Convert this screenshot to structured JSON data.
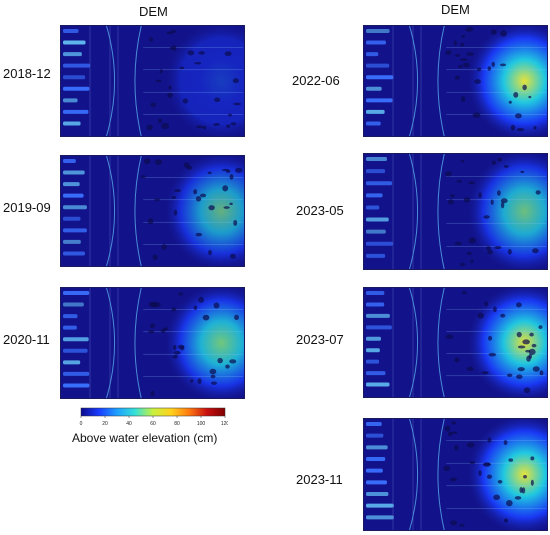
{
  "columns": [
    {
      "title": "DEM"
    },
    {
      "title": "DEM"
    }
  ],
  "panels": [
    {
      "date": "2018-12",
      "intensity": 0.15
    },
    {
      "date": "2019-09",
      "intensity": 0.55
    },
    {
      "date": "2020-11",
      "intensity": 0.7
    },
    {
      "date": "2022-06",
      "intensity": 0.95
    },
    {
      "date": "2023-05",
      "intensity": 0.65
    },
    {
      "date": "2023-07",
      "intensity": 0.85
    },
    {
      "date": "2023-11",
      "intensity": 0.9
    }
  ],
  "colorbar": {
    "title": "Above water elevation (cm)",
    "ticks": [
      "0",
      "20",
      "40",
      "60",
      "80",
      "100",
      "120"
    ],
    "min": 0,
    "max": 120,
    "colors": [
      "#0a0a8c",
      "#1a3cff",
      "#1ea0ff",
      "#35e0d8",
      "#c8f040",
      "#ffd21e",
      "#ff7a10",
      "#c81010",
      "#800000"
    ]
  }
}
